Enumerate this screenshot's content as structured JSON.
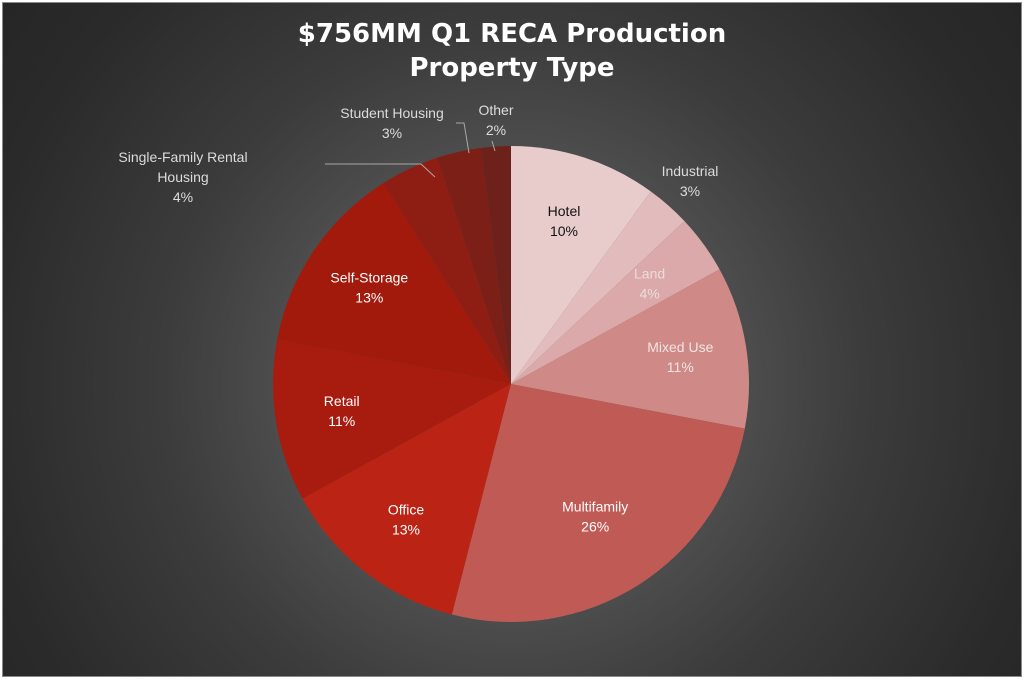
{
  "chart_data": {
    "type": "pie",
    "title_line1": "$756MM Q1 RECA Production",
    "title_line2": "Property Type",
    "slices": [
      {
        "category": "Hotel",
        "value": 10,
        "label": "10%",
        "color": "#e8cccc",
        "text_color": "#111111"
      },
      {
        "category": "Industrial",
        "value": 3,
        "label": "3%",
        "color": "#e2bcbc",
        "text_color": "#e8e8e8"
      },
      {
        "category": "Land",
        "value": 4,
        "label": "4%",
        "color": "#dba9a9",
        "text_color": "#ecdcdc"
      },
      {
        "category": "Mixed Use",
        "value": 11,
        "label": "11%",
        "color": "#cf8a87",
        "text_color": "#f2e4e4"
      },
      {
        "category": "Multifamily",
        "value": 26,
        "label": "26%",
        "color": "#c05a55",
        "text_color": "#ffffff"
      },
      {
        "category": "Office",
        "value": 13,
        "label": "13%",
        "color": "#bb2415",
        "text_color": "#ffffff"
      },
      {
        "category": "Retail",
        "value": 11,
        "label": "11%",
        "color": "#a81c10",
        "text_color": "#ffffff"
      },
      {
        "category": "Self-Storage",
        "value": 13,
        "label": "13%",
        "color": "#a11a0c",
        "text_color": "#ffffff"
      },
      {
        "category": "Single-Family Rental Housing",
        "value": 4,
        "label": "4%",
        "color": "#8e1e14",
        "text_color": "#ffffff"
      },
      {
        "category": "Student Housing",
        "value": 3,
        "label": "3%",
        "color": "#7c1f17",
        "text_color": "#ffffff"
      },
      {
        "category": "Other",
        "value": 2,
        "label": "2%",
        "color": "#6c211b",
        "text_color": "#ffffff"
      }
    ]
  }
}
